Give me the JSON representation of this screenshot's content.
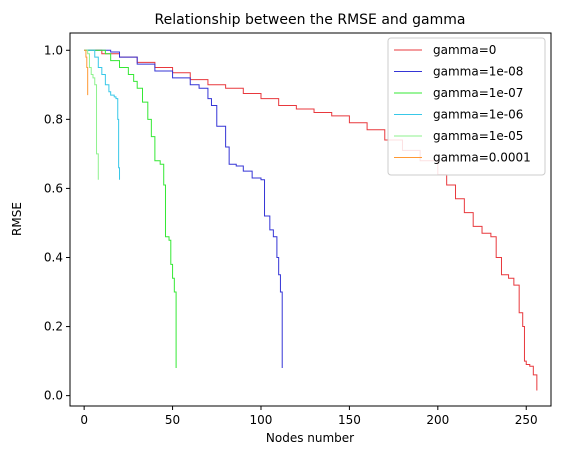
{
  "chart_data": {
    "type": "line",
    "title": "Relationship between the RMSE and gamma",
    "xlabel": "Nodes number",
    "ylabel": "RMSE",
    "xlim": [
      -8,
      264
    ],
    "ylim": [
      -0.03,
      1.05
    ],
    "xticks": [
      0,
      50,
      100,
      150,
      200,
      250
    ],
    "yticks": [
      0.0,
      0.2,
      0.4,
      0.6,
      0.8,
      1.0
    ],
    "legend_position": "top-right",
    "grid": false,
    "series": [
      {
        "name": "gamma=0",
        "color": "#e8383d",
        "points": [
          [
            0,
            1.0
          ],
          [
            5,
            1.0
          ],
          [
            10,
            0.99
          ],
          [
            20,
            0.98
          ],
          [
            30,
            0.965
          ],
          [
            40,
            0.95
          ],
          [
            50,
            0.935
          ],
          [
            60,
            0.915
          ],
          [
            70,
            0.9
          ],
          [
            80,
            0.89
          ],
          [
            90,
            0.875
          ],
          [
            100,
            0.86
          ],
          [
            110,
            0.84
          ],
          [
            120,
            0.83
          ],
          [
            130,
            0.82
          ],
          [
            140,
            0.81
          ],
          [
            150,
            0.79
          ],
          [
            160,
            0.77
          ],
          [
            170,
            0.74
          ],
          [
            180,
            0.71
          ],
          [
            190,
            0.68
          ],
          [
            200,
            0.64
          ],
          [
            205,
            0.61
          ],
          [
            210,
            0.57
          ],
          [
            215,
            0.53
          ],
          [
            220,
            0.49
          ],
          [
            225,
            0.47
          ],
          [
            230,
            0.46
          ],
          [
            233,
            0.4
          ],
          [
            236,
            0.35
          ],
          [
            240,
            0.34
          ],
          [
            243,
            0.32
          ],
          [
            246,
            0.24
          ],
          [
            248,
            0.2
          ],
          [
            249,
            0.1
          ],
          [
            250,
            0.09
          ],
          [
            252,
            0.085
          ],
          [
            254,
            0.06
          ],
          [
            256,
            0.015
          ]
        ]
      },
      {
        "name": "gamma=1e-08",
        "color": "#3535d6",
        "points": [
          [
            0,
            1.0
          ],
          [
            10,
            1.0
          ],
          [
            15,
            0.995
          ],
          [
            20,
            0.98
          ],
          [
            30,
            0.96
          ],
          [
            40,
            0.94
          ],
          [
            50,
            0.92
          ],
          [
            60,
            0.9
          ],
          [
            65,
            0.89
          ],
          [
            70,
            0.86
          ],
          [
            72,
            0.84
          ],
          [
            75,
            0.78
          ],
          [
            80,
            0.72
          ],
          [
            82,
            0.67
          ],
          [
            86,
            0.665
          ],
          [
            90,
            0.65
          ],
          [
            95,
            0.63
          ],
          [
            100,
            0.625
          ],
          [
            102,
            0.52
          ],
          [
            105,
            0.48
          ],
          [
            107,
            0.46
          ],
          [
            109,
            0.4
          ],
          [
            110,
            0.35
          ],
          [
            111,
            0.3
          ],
          [
            112,
            0.08
          ]
        ]
      },
      {
        "name": "gamma=1e-07",
        "color": "#35e835",
        "points": [
          [
            0,
            1.0
          ],
          [
            8,
            1.0
          ],
          [
            12,
            0.99
          ],
          [
            15,
            0.97
          ],
          [
            20,
            0.95
          ],
          [
            25,
            0.93
          ],
          [
            28,
            0.91
          ],
          [
            30,
            0.89
          ],
          [
            33,
            0.85
          ],
          [
            36,
            0.8
          ],
          [
            38,
            0.75
          ],
          [
            40,
            0.68
          ],
          [
            43,
            0.67
          ],
          [
            45,
            0.61
          ],
          [
            46,
            0.46
          ],
          [
            48,
            0.45
          ],
          [
            49,
            0.38
          ],
          [
            50,
            0.34
          ],
          [
            51,
            0.3
          ],
          [
            52,
            0.08
          ]
        ]
      },
      {
        "name": "gamma=1e-06",
        "color": "#38c8e8",
        "points": [
          [
            0,
            1.0
          ],
          [
            4,
            1.0
          ],
          [
            6,
            0.98
          ],
          [
            8,
            0.95
          ],
          [
            10,
            0.93
          ],
          [
            12,
            0.9
          ],
          [
            14,
            0.88
          ],
          [
            15,
            0.87
          ],
          [
            17,
            0.865
          ],
          [
            18,
            0.86
          ],
          [
            19,
            0.8
          ],
          [
            19.5,
            0.66
          ],
          [
            20,
            0.625
          ]
        ]
      },
      {
        "name": "gamma=1e-05",
        "color": "#8ef28e",
        "points": [
          [
            0,
            1.0
          ],
          [
            2,
            0.99
          ],
          [
            3,
            0.95
          ],
          [
            4,
            0.93
          ],
          [
            5,
            0.92
          ],
          [
            6,
            0.9
          ],
          [
            7,
            0.7
          ],
          [
            8,
            0.625
          ]
        ]
      },
      {
        "name": "gamma=0.0001",
        "color": "#ff9933",
        "points": [
          [
            0,
            1.0
          ],
          [
            1,
            0.98
          ],
          [
            1.5,
            0.95
          ],
          [
            2,
            0.87
          ]
        ]
      }
    ]
  }
}
